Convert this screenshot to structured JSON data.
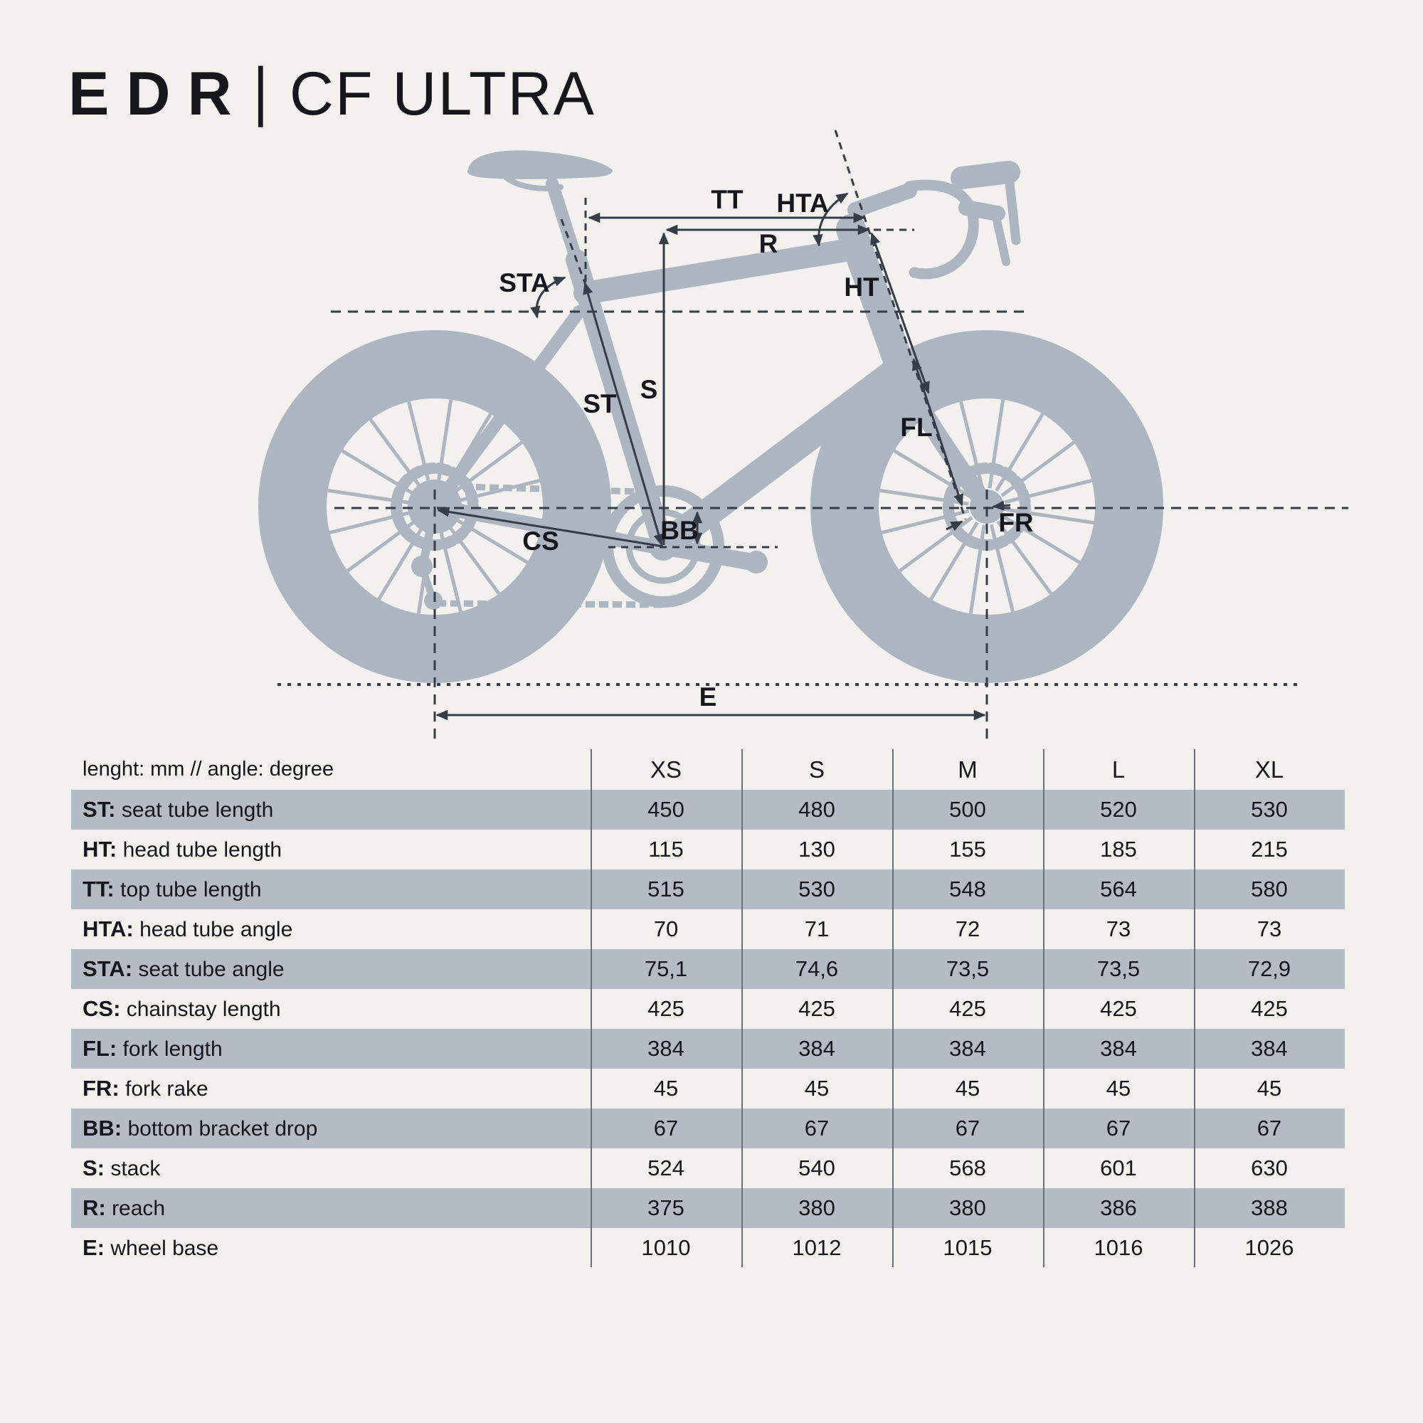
{
  "title": {
    "series": "EDR",
    "separator": "|",
    "model": "CF ULTRA"
  },
  "colors": {
    "background": "#f2f1ee",
    "bike": "#adb5c1",
    "row_shade": "#b5bbc5",
    "annotation": "#363c48",
    "text": "#15171c",
    "divider": "#6a707a"
  },
  "diagram": {
    "labels": {
      "hta": "HTA",
      "tt": "TT",
      "r": "R",
      "sta": "STA",
      "ht": "HT",
      "s": "S",
      "st": "ST",
      "fl": "FL",
      "bb": "BB",
      "cs": "CS",
      "fr": "FR",
      "e": "E"
    }
  },
  "table": {
    "header": {
      "label": "lenght: mm // angle: degree",
      "sizes": [
        "XS",
        "S",
        "M",
        "L",
        "XL"
      ]
    },
    "rows": [
      {
        "abbr": "ST:",
        "desc": "seat tube length",
        "values": [
          "450",
          "480",
          "500",
          "520",
          "530"
        ],
        "shaded": true
      },
      {
        "abbr": "HT:",
        "desc": "head tube length",
        "values": [
          "115",
          "130",
          "155",
          "185",
          "215"
        ],
        "shaded": false
      },
      {
        "abbr": "TT:",
        "desc": "top tube length",
        "values": [
          "515",
          "530",
          "548",
          "564",
          "580"
        ],
        "shaded": true
      },
      {
        "abbr": "HTA:",
        "desc": "head tube angle",
        "values": [
          "70",
          "71",
          "72",
          "73",
          "73"
        ],
        "shaded": false
      },
      {
        "abbr": "STA:",
        "desc": "seat tube angle",
        "values": [
          "75,1",
          "74,6",
          "73,5",
          "73,5",
          "72,9"
        ],
        "shaded": true
      },
      {
        "abbr": "CS:",
        "desc": "chainstay length",
        "values": [
          "425",
          "425",
          "425",
          "425",
          "425"
        ],
        "shaded": false
      },
      {
        "abbr": "FL:",
        "desc": "fork length",
        "values": [
          "384",
          "384",
          "384",
          "384",
          "384"
        ],
        "shaded": true
      },
      {
        "abbr": "FR:",
        "desc": "fork rake",
        "values": [
          "45",
          "45",
          "45",
          "45",
          "45"
        ],
        "shaded": false
      },
      {
        "abbr": "BB:",
        "desc": "bottom bracket drop",
        "values": [
          "67",
          "67",
          "67",
          "67",
          "67"
        ],
        "shaded": true
      },
      {
        "abbr": "S:",
        "desc": "stack",
        "values": [
          "524",
          "540",
          "568",
          "601",
          "630"
        ],
        "shaded": false
      },
      {
        "abbr": "R:",
        "desc": "reach",
        "values": [
          "375",
          "380",
          "380",
          "386",
          "388"
        ],
        "shaded": true
      },
      {
        "abbr": "E:",
        "desc": "wheel base",
        "values": [
          "1010",
          "1012",
          "1015",
          "1016",
          "1026"
        ],
        "shaded": false
      }
    ]
  }
}
